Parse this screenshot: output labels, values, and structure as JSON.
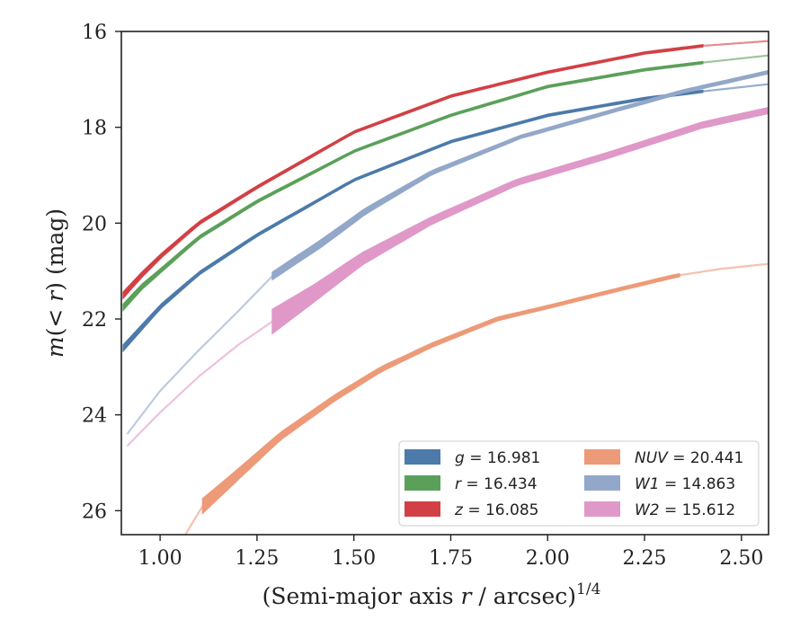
{
  "chart_data": {
    "type": "line",
    "xlabel_main": "(Semi-major axis ",
    "xlabel_var": "r",
    "xlabel_after": " / arcsec)",
    "xlabel_sup": "1/4",
    "ylabel_var": "m",
    "ylabel_paren_open": "(",
    "ylabel_inner": "< r",
    "ylabel_rest": ") (mag)",
    "xlim": [
      0.9,
      2.57
    ],
    "ylim": [
      16.0,
      26.5
    ],
    "y_inverted": true,
    "x_ticks": [
      "1.00",
      "1.25",
      "1.50",
      "1.75",
      "2.00",
      "2.25",
      "2.50"
    ],
    "x_tick_values": [
      1.0,
      1.25,
      1.5,
      1.75,
      2.0,
      2.25,
      2.5
    ],
    "y_ticks": [
      "16",
      "18",
      "20",
      "22",
      "24",
      "26"
    ],
    "y_tick_values": [
      16,
      18,
      20,
      22,
      24,
      26
    ],
    "legend_position": "lower-right",
    "series": [
      {
        "name": "g = 16.981",
        "band": "g",
        "value": "16.981",
        "color": "#4c7aaa",
        "x": [
          0.905,
          0.95,
          1.0,
          1.1,
          1.25,
          1.5,
          1.75,
          2.0,
          2.25,
          2.4,
          2.57
        ],
        "y": [
          22.6,
          22.2,
          21.75,
          21.05,
          20.25,
          19.1,
          18.3,
          17.75,
          17.4,
          17.25,
          17.1
        ],
        "width": [
          0.12,
          0.1,
          0.08,
          0.06,
          0.05,
          0.04,
          0.04,
          0.04,
          0.04,
          0.04,
          0.04
        ],
        "faint_after": 2.4
      },
      {
        "name": "r = 16.434",
        "band": "r",
        "value": "16.434",
        "color": "#5ba05a",
        "x": [
          0.905,
          0.95,
          1.0,
          1.1,
          1.25,
          1.5,
          1.75,
          2.0,
          2.25,
          2.4,
          2.57
        ],
        "y": [
          21.75,
          21.35,
          21.0,
          20.3,
          19.55,
          18.5,
          17.75,
          17.15,
          16.8,
          16.65,
          16.5
        ],
        "width": [
          0.12,
          0.1,
          0.08,
          0.06,
          0.05,
          0.04,
          0.04,
          0.04,
          0.04,
          0.04,
          0.04
        ],
        "faint_after": 2.4
      },
      {
        "name": "z = 16.085",
        "band": "z",
        "value": "16.085",
        "color": "#d24045",
        "x": [
          0.905,
          0.95,
          1.0,
          1.1,
          1.25,
          1.5,
          1.75,
          2.0,
          2.25,
          2.4,
          2.57
        ],
        "y": [
          21.5,
          21.1,
          20.7,
          20.0,
          19.25,
          18.1,
          17.35,
          16.85,
          16.45,
          16.3,
          16.2
        ],
        "width": [
          0.12,
          0.1,
          0.08,
          0.06,
          0.05,
          0.04,
          0.04,
          0.04,
          0.04,
          0.04,
          0.04
        ],
        "faint_after": 2.4
      },
      {
        "name": "NUV = 20.441",
        "band": "NUV",
        "value": "20.441",
        "color": "#ed9a78",
        "x": [
          1.05,
          1.11,
          1.2,
          1.31,
          1.45,
          1.57,
          1.7,
          1.87,
          2.0,
          2.15,
          2.33,
          2.45,
          2.57
        ],
        "y": [
          26.7,
          25.9,
          25.25,
          24.45,
          23.65,
          23.05,
          22.55,
          22.0,
          21.75,
          21.45,
          21.1,
          20.95,
          20.85
        ],
        "width": [
          0.3,
          0.3,
          0.22,
          0.15,
          0.12,
          0.1,
          0.08,
          0.07,
          0.06,
          0.06,
          0.06,
          0.05,
          0.05
        ],
        "solid_from": 1.11,
        "faint_after": 2.34
      },
      {
        "name": "W1 = 14.863",
        "band": "W1",
        "value": "14.863",
        "color": "#93a7c9",
        "x": [
          0.915,
          1.0,
          1.1,
          1.2,
          1.29,
          1.42,
          1.53,
          1.7,
          1.93,
          2.15,
          2.35,
          2.57
        ],
        "y": [
          24.4,
          23.5,
          22.65,
          21.85,
          21.1,
          20.4,
          19.75,
          18.95,
          18.2,
          17.7,
          17.25,
          16.85
        ],
        "width": [
          0.05,
          0.05,
          0.05,
          0.05,
          0.15,
          0.15,
          0.12,
          0.08,
          0.06,
          0.06,
          0.06,
          0.06
        ],
        "solid_from": 1.29,
        "faint_after": 2.57
      },
      {
        "name": "W2 = 15.612",
        "band": "W2",
        "value": "15.612",
        "color": "#df98c8",
        "x": [
          0.915,
          1.0,
          1.1,
          1.2,
          1.29,
          1.4,
          1.52,
          1.7,
          1.92,
          2.15,
          2.4,
          2.57
        ],
        "y": [
          24.65,
          23.95,
          23.2,
          22.55,
          22.05,
          21.45,
          20.75,
          19.95,
          19.15,
          18.6,
          17.95,
          17.65
        ],
        "width": [
          0.05,
          0.05,
          0.05,
          0.05,
          0.5,
          0.35,
          0.25,
          0.15,
          0.12,
          0.12,
          0.12,
          0.12
        ],
        "solid_from": 1.29,
        "faint_after": 2.57
      }
    ],
    "legend_columns": [
      [
        "g",
        "r",
        "z"
      ],
      [
        "NUV",
        "W1",
        "W2"
      ]
    ]
  }
}
